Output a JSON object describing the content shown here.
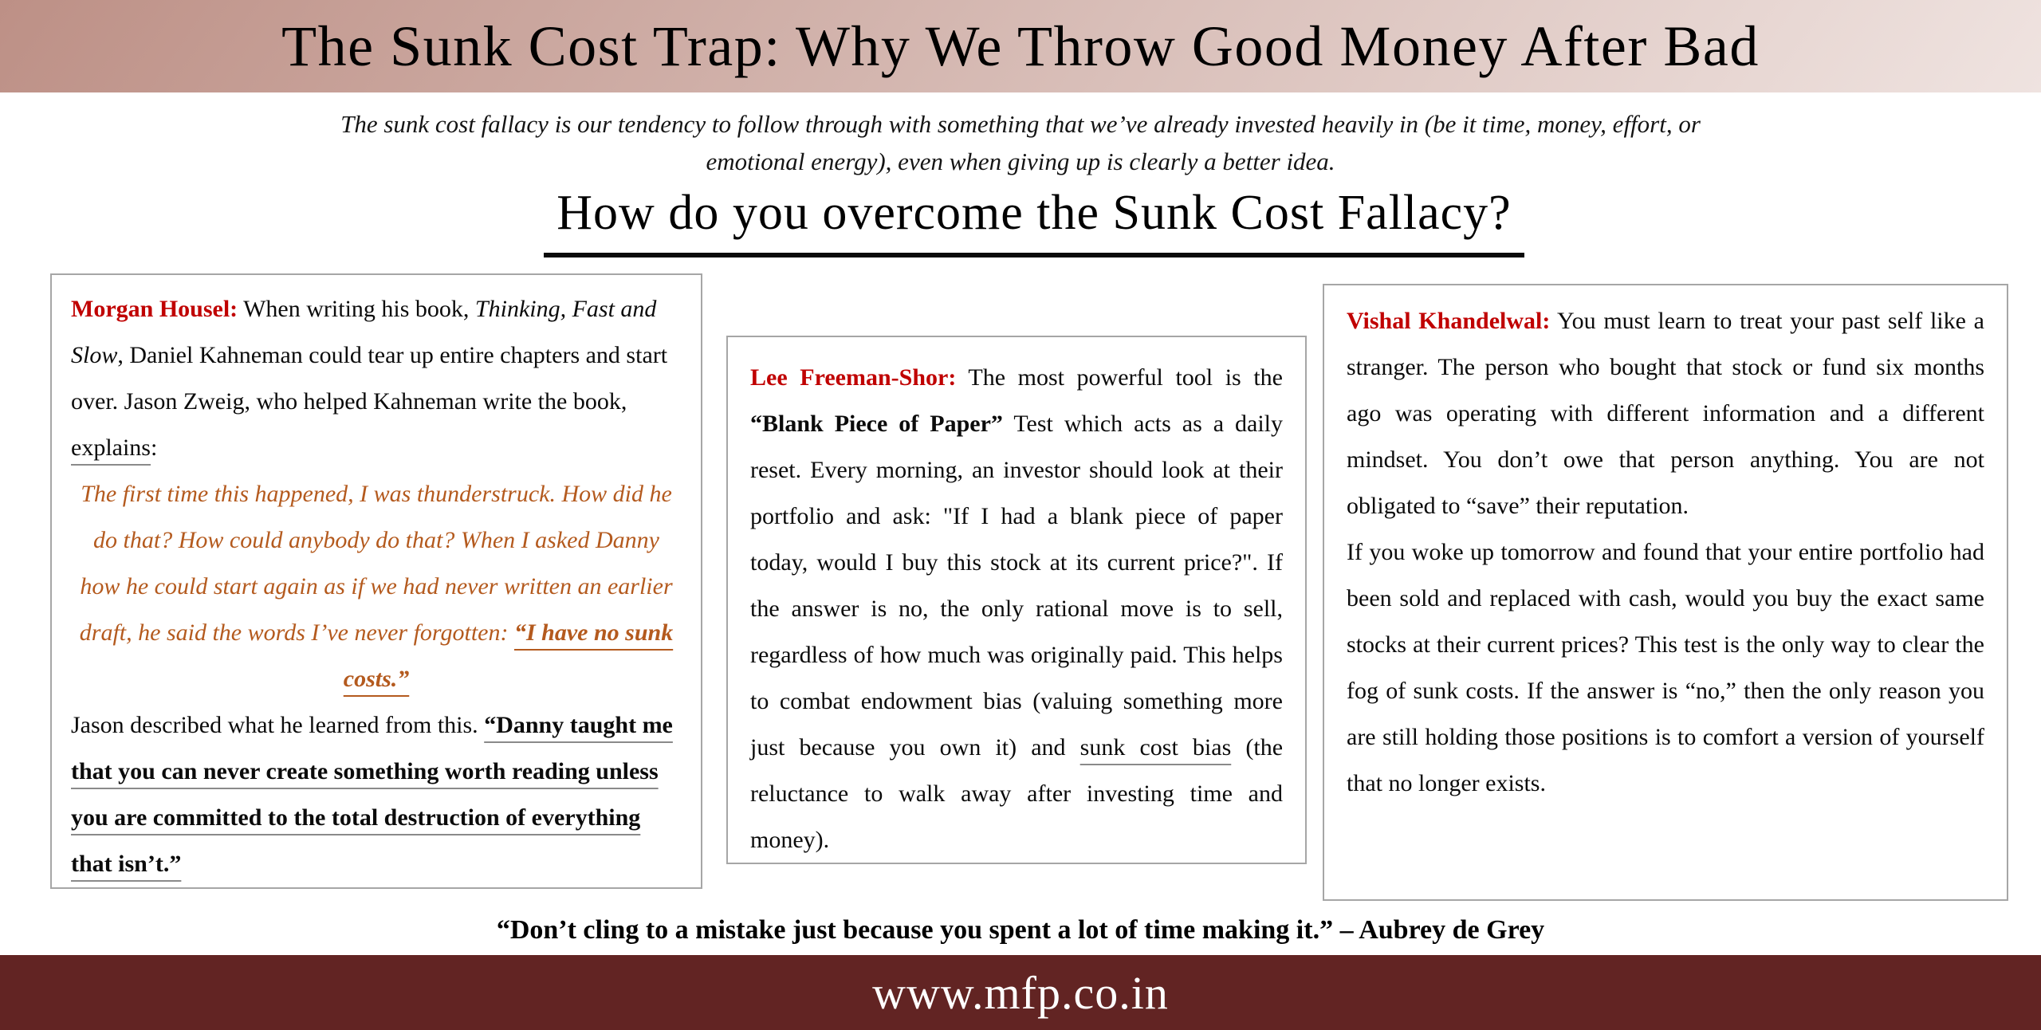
{
  "colors": {
    "accent_red": "#C00000",
    "quote_orange": "#B45A1E",
    "footer_maroon": "#622423",
    "header_grad_start": "#BD9086",
    "header_grad_mid": "#D9BFB9",
    "header_grad_end": "#EFE3E0",
    "border_gray": "#A6A6A6"
  },
  "header": {
    "title": "The Sunk Cost Trap: Why We Throw Good Money After Bad"
  },
  "intro": {
    "line1": "The sunk cost fallacy is our tendency to follow through with something that we’ve already invested heavily in (be it time, money, effort, or",
    "line2": "emotional energy), even when giving up is clearly a better idea."
  },
  "question": {
    "text": "How do you overcome the Sunk Cost Fallacy?"
  },
  "cards": {
    "housel": {
      "name": "Morgan Housel:",
      "seg_intro": " When writing his book, ",
      "seg_book": "Thinking, Fast and Slow",
      "seg_after_book": ", Daniel Kahneman could tear up entire chapters and start over. Jason Zweig, who helped Kahneman write the book, ",
      "seg_explains": "explains",
      "seg_colon": ":",
      "quote_main": "The first time this happened, I was thunderstruck. How did he do that? How could anybody do that? When I asked Danny how he could start again as if we had never written an earlier draft, he said the words I’ve never forgotten: ",
      "quote_emph": "“I have no sunk costs.”",
      "seg_jason": "Jason described what he learned from this. ",
      "seg_danny": "“Danny taught me that you can never create something worth reading unless you are committed to the total destruction of everything that isn’t.”"
    },
    "freeman_shor": {
      "name": "Lee Freeman-Shor:",
      "seg1": " The most powerful tool is the ",
      "seg_blank": "“Blank Piece of Paper”",
      "seg2": " Test which acts as a daily reset. Every morning, an investor should look at their portfolio and ask: \"If I had a blank piece of paper today, would I buy this stock at its current price?\". If the answer is no, the only rational move is to sell, regardless of how much was originally paid. This helps to combat endowment bias (valuing something more just because you own it) and ",
      "seg_sunk": "sunk cost bias",
      "seg3": " (the reluctance to walk away after investing time and money)."
    },
    "khandelwal": {
      "name": "Vishal Khandelwal:",
      "para1": " You must learn to treat your past self like a stranger. The person who bought that stock or fund six months ago was operating with different information and a different mindset. You don’t owe that person anything. You are not obligated to “save” their reputation.",
      "para2": "If you woke up tomorrow and found that your entire portfolio had been sold and replaced with cash, would you buy the exact same stocks at their current prices? This test is the only way to clear the fog of sunk costs. If the answer is “no,” then the only reason you are still holding those positions is to comfort a version of yourself that no longer exists."
    }
  },
  "quote_bar": {
    "text": "“Don’t cling to a mistake just because you spent a lot of time making it.” – Aubrey de Grey"
  },
  "footer": {
    "url": "www.mfp.co.in"
  }
}
